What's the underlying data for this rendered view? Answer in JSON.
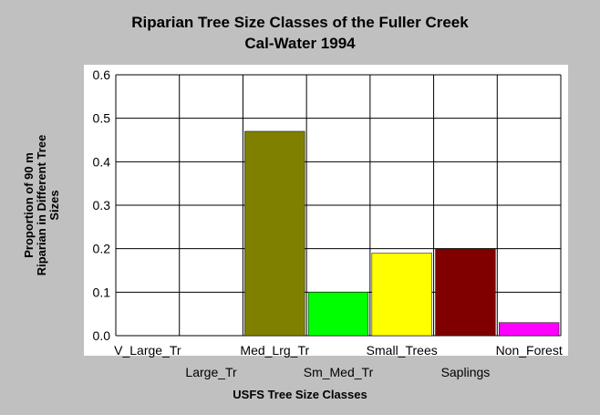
{
  "chart_data": {
    "type": "bar",
    "title": "Riparian Tree Size Classes of the Fuller Creek",
    "subtitle": "Cal-Water 1994",
    "xlabel": "USFS Tree Size Classes",
    "ylabel_lines": [
      "Proportion of 90 m",
      "Riparian in Different Tree",
      "Sizes"
    ],
    "ylim": [
      0,
      0.6
    ],
    "yticks": [
      "0.0",
      "0.1",
      "0.2",
      "0.3",
      "0.4",
      "0.5",
      "0.6"
    ],
    "grid": true,
    "categories": [
      "V_Large_Tr",
      "Large_Tr",
      "Med_Lrg_Tr",
      "Sm_Med_Tr",
      "Small_Trees",
      "Saplings",
      "Non_Forest"
    ],
    "values": [
      0,
      0,
      0.47,
      0.1,
      0.19,
      0.2,
      0.03
    ],
    "colors": [
      "#808000",
      "#808000",
      "#808000",
      "#00ff00",
      "#ffff00",
      "#800000",
      "#ff00ff"
    ]
  }
}
